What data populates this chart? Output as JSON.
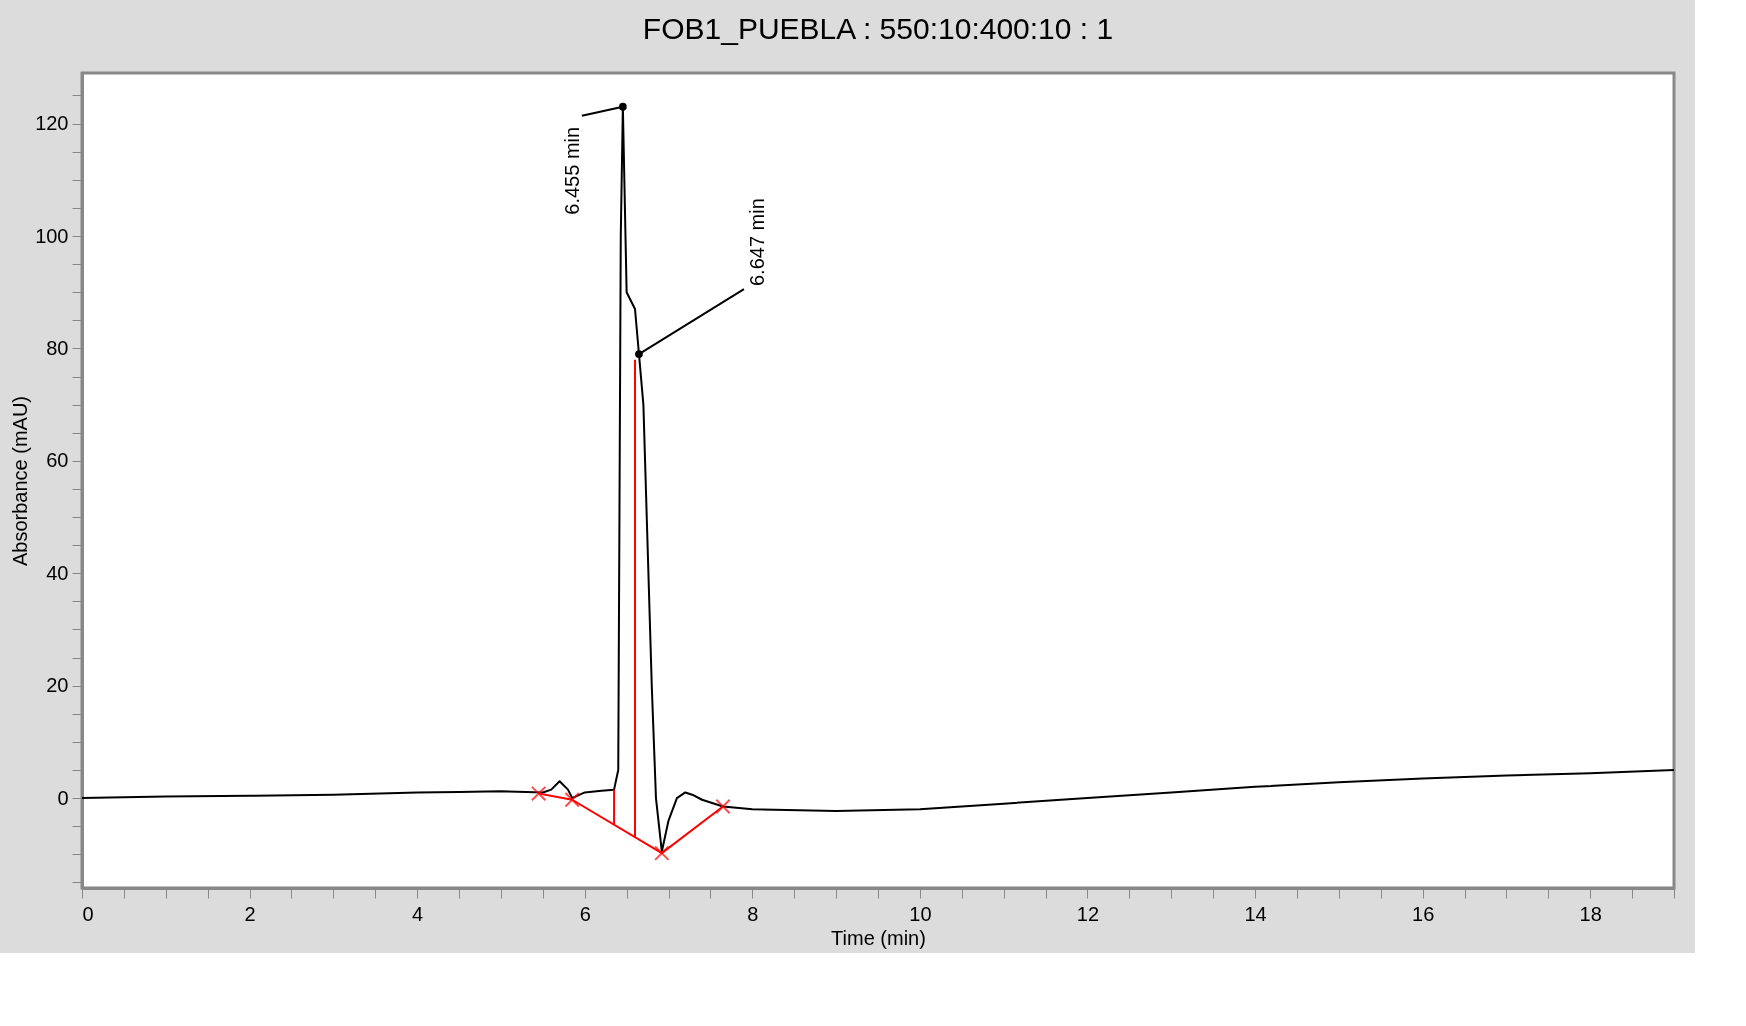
{
  "chart_data": {
    "type": "line",
    "title": "FOB1_PUEBLA : 550:10:400:10 : 1",
    "xlabel": "Time (min)",
    "ylabel": "Absorbance (mAU)",
    "xlim": [
      0,
      19
    ],
    "ylim": [
      -16,
      129
    ],
    "xticks": [
      0,
      {
        "value": 0.5,
        "label": null
      },
      {
        "value": 1,
        "label": null
      },
      {
        "value": 1.5,
        "label": null
      },
      2,
      {
        "value": 2.5,
        "label": null
      },
      {
        "value": 3,
        "label": null
      },
      {
        "value": 3.5,
        "label": null
      },
      4,
      {
        "value": 4.5,
        "label": null
      },
      {
        "value": 5,
        "label": null
      },
      {
        "value": 5.5,
        "label": null
      },
      6,
      {
        "value": 6.5,
        "label": null
      },
      {
        "value": 7,
        "label": null
      },
      {
        "value": 7.5,
        "label": null
      },
      8,
      {
        "value": 8.5,
        "label": null
      },
      {
        "value": 9,
        "label": null
      },
      {
        "value": 9.5,
        "label": null
      },
      10,
      {
        "value": 10.5,
        "label": null
      },
      {
        "value": 11,
        "label": null
      },
      {
        "value": 11.5,
        "label": null
      },
      12,
      {
        "value": 12.5,
        "label": null
      },
      {
        "value": 13,
        "label": null
      },
      {
        "value": 13.5,
        "label": null
      },
      14,
      {
        "value": 14.5,
        "label": null
      },
      {
        "value": 15,
        "label": null
      },
      {
        "value": 15.5,
        "label": null
      },
      16,
      {
        "value": 16.5,
        "label": null
      },
      {
        "value": 17,
        "label": null
      },
      {
        "value": 17.5,
        "label": null
      },
      18,
      {
        "value": 18.5,
        "label": null
      },
      {
        "value": 19,
        "label": null
      }
    ],
    "yticks": [
      {
        "value": -15,
        "label": null
      },
      {
        "value": -10,
        "label": null
      },
      {
        "value": -5,
        "label": null
      },
      0,
      {
        "value": 5,
        "label": null
      },
      {
        "value": 10,
        "label": null
      },
      {
        "value": 15,
        "label": null
      },
      20,
      {
        "value": 25,
        "label": null
      },
      {
        "value": 30,
        "label": null
      },
      {
        "value": 35,
        "label": null
      },
      40,
      {
        "value": 45,
        "label": null
      },
      {
        "value": 50,
        "label": null
      },
      {
        "value": 55,
        "label": null
      },
      60,
      {
        "value": 65,
        "label": null
      },
      {
        "value": 70,
        "label": null
      },
      {
        "value": 75,
        "label": null
      },
      80,
      {
        "value": 85,
        "label": null
      },
      {
        "value": 90,
        "label": null
      },
      {
        "value": 95,
        "label": null
      },
      100,
      {
        "value": 105,
        "label": null
      },
      {
        "value": 110,
        "label": null
      },
      {
        "value": 115,
        "label": null
      },
      120,
      {
        "value": 125,
        "label": null
      }
    ],
    "grid": false,
    "legend": false,
    "series": [
      {
        "color": "#000000",
        "marker": "none",
        "x": [
          0,
          1,
          2,
          3,
          4,
          4.5,
          5,
          5.3,
          5.5,
          5.6,
          5.7,
          5.8,
          5.85,
          6.0,
          6.2,
          6.35,
          6.4,
          6.43,
          6.455,
          6.5,
          6.6,
          6.647,
          6.7,
          6.8,
          6.85,
          6.92,
          7.0,
          7.1,
          7.2,
          7.3,
          7.4,
          7.65,
          8,
          9,
          10,
          11,
          12,
          13,
          14,
          15,
          16,
          17,
          18,
          19
        ],
        "values": [
          0,
          0.3,
          0.4,
          0.6,
          1,
          1.1,
          1.2,
          1.1,
          1,
          1.5,
          3,
          1.5,
          0,
          1,
          1.3,
          1.5,
          5,
          100,
          123,
          90,
          87,
          79,
          70,
          20,
          0,
          -9.5,
          -4,
          0,
          1,
          0.5,
          -0.3,
          -1.5,
          -2,
          -2.3,
          -2,
          -1,
          0,
          1,
          2,
          2.8,
          3.5,
          4,
          4.4,
          5
        ]
      },
      {
        "color": "#ff0000",
        "marker": "cross",
        "x": [
          5.45,
          5.85,
          6.92,
          7.65
        ],
        "values": [
          0.8,
          -0.3,
          -9.8,
          -1.5
        ]
      },
      {
        "color": "#ff0000",
        "marker": "none",
        "x": [
          6.35,
          6.35
        ],
        "values": [
          1.5,
          -4.7
        ]
      },
      {
        "color": "#ff0000",
        "marker": "none",
        "x": [
          6.6,
          6.6
        ],
        "values": [
          78,
          -7
        ]
      }
    ],
    "annotations": [
      {
        "text": "6.455 min",
        "x": 6.455,
        "y": 123
      },
      {
        "text": "6.647 min",
        "x": 6.647,
        "y": 79
      }
    ]
  }
}
